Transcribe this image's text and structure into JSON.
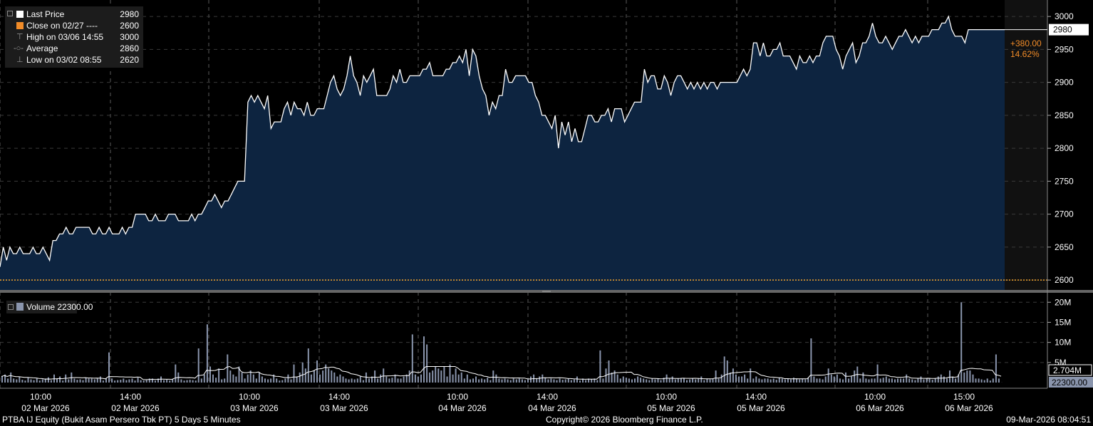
{
  "legend": {
    "last_price_label": "Last Price",
    "last_price_value": "2980",
    "close_label": "Close on 02/27 ----",
    "close_value": "2600",
    "high_label": "High on 03/06 14:55",
    "high_value": "3000",
    "average_label": "Average",
    "average_value": "2860",
    "low_label": "Low on 03/02 08:55",
    "low_value": "2620"
  },
  "volume_legend": "Volume 22300.00",
  "change": {
    "abs": "+380.00",
    "pct": "14.62%"
  },
  "last_price_tag": "2980",
  "volume_avg_tag": "2.704M",
  "volume_last_tag": "22300.00",
  "footer": {
    "left": "PTBA IJ Equity (Bukit Asam Persero Tbk PT) 5 Days 5 Minutes",
    "center": "Copyright© 2026 Bloomberg Finance L.P.",
    "right": "09-Mar-2026 08:04:51"
  },
  "colors": {
    "price_line": "#ffffff",
    "price_fill": "#0d2440",
    "close_line": "#f2a32c",
    "volume_bar": "#8a95ad",
    "accent_orange": "#f28c28",
    "grid": "#5a5a5a"
  },
  "chart_data": [
    {
      "type": "area",
      "title": "Last Price",
      "ylim": [
        2585,
        3025
      ],
      "y_ticks": [
        "3000",
        "2950",
        "2900",
        "2850",
        "2800",
        "2750",
        "2700",
        "2650",
        "2600"
      ],
      "close_reference": 2600,
      "grid": true,
      "x_ticks": [
        {
          "time": "10:00",
          "date": "02 Mar 2026"
        },
        {
          "time": "14:00",
          "date": "02 Mar 2026"
        },
        {
          "time": "10:00",
          "date": "03 Mar 2026"
        },
        {
          "time": "14:00",
          "date": "03 Mar 2026"
        },
        {
          "time": "10:00",
          "date": "04 Mar 2026"
        },
        {
          "time": "14:00",
          "date": "04 Mar 2026"
        },
        {
          "time": "10:00",
          "date": "05 Mar 2026"
        },
        {
          "time": "14:00",
          "date": "05 Mar 2026"
        },
        {
          "time": "10:00",
          "date": "06 Mar 2026"
        },
        {
          "time": "15:00",
          "date": "06 Mar 2026"
        }
      ],
      "values": [
        2620,
        2650,
        2630,
        2650,
        2640,
        2640,
        2650,
        2640,
        2640,
        2640,
        2650,
        2640,
        2640,
        2650,
        2640,
        2630,
        2660,
        2660,
        2670,
        2670,
        2680,
        2670,
        2670,
        2680,
        2680,
        2680,
        2680,
        2680,
        2670,
        2670,
        2680,
        2670,
        2670,
        2680,
        2670,
        2670,
        2670,
        2680,
        2670,
        2680,
        2680,
        2700,
        2700,
        2700,
        2700,
        2690,
        2690,
        2700,
        2690,
        2690,
        2690,
        2700,
        2700,
        2700,
        2690,
        2690,
        2690,
        2690,
        2700,
        2690,
        2700,
        2700,
        2710,
        2720,
        2720,
        2730,
        2720,
        2710,
        2720,
        2720,
        2730,
        2740,
        2750,
        2750,
        2750,
        2870,
        2880,
        2870,
        2880,
        2870,
        2860,
        2880,
        2830,
        2840,
        2840,
        2840,
        2860,
        2870,
        2850,
        2870,
        2860,
        2860,
        2850,
        2870,
        2850,
        2850,
        2860,
        2860,
        2860,
        2880,
        2900,
        2910,
        2890,
        2880,
        2890,
        2910,
        2940,
        2910,
        2900,
        2880,
        2910,
        2900,
        2910,
        2920,
        2880,
        2880,
        2880,
        2880,
        2890,
        2910,
        2900,
        2920,
        2900,
        2900,
        2910,
        2910,
        2910,
        2910,
        2920,
        2920,
        2930,
        2910,
        2910,
        2910,
        2910,
        2920,
        2920,
        2930,
        2930,
        2940,
        2930,
        2950,
        2910,
        2950,
        2940,
        2910,
        2890,
        2880,
        2850,
        2870,
        2860,
        2880,
        2880,
        2920,
        2900,
        2900,
        2910,
        2910,
        2910,
        2910,
        2900,
        2900,
        2880,
        2870,
        2850,
        2850,
        2840,
        2830,
        2850,
        2800,
        2840,
        2820,
        2840,
        2810,
        2830,
        2810,
        2810,
        2830,
        2850,
        2850,
        2840,
        2840,
        2850,
        2850,
        2860,
        2840,
        2860,
        2860,
        2860,
        2840,
        2850,
        2860,
        2870,
        2870,
        2870,
        2920,
        2900,
        2910,
        2910,
        2890,
        2890,
        2910,
        2900,
        2880,
        2900,
        2910,
        2910,
        2900,
        2890,
        2900,
        2890,
        2900,
        2890,
        2900,
        2890,
        2900,
        2900,
        2890,
        2900,
        2900,
        2900,
        2900,
        2900,
        2900,
        2910,
        2920,
        2910,
        2920,
        2960,
        2960,
        2940,
        2960,
        2940,
        2940,
        2950,
        2950,
        2960,
        2940,
        2940,
        2940,
        2930,
        2920,
        2940,
        2930,
        2930,
        2940,
        2930,
        2940,
        2940,
        2960,
        2970,
        2970,
        2970,
        2950,
        2940,
        2920,
        2940,
        2950,
        2960,
        2930,
        2940,
        2960,
        2960,
        2970,
        2990,
        2970,
        2960,
        2960,
        2970,
        2960,
        2950,
        2960,
        2970,
        2970,
        2980,
        2970,
        2960,
        2970,
        2960,
        2970,
        2970,
        2970,
        2980,
        2980,
        2980,
        2990,
        2990,
        3000,
        2980,
        2970,
        2970,
        2970,
        2960,
        2980,
        2980,
        2980,
        2980,
        2980,
        2980,
        2980,
        2980,
        2980,
        2980,
        2980,
        2980
      ]
    },
    {
      "type": "bar",
      "title": "Volume",
      "ylim": [
        0,
        22000000
      ],
      "y_ticks": [
        "20M",
        "15M",
        "10M",
        "5M"
      ],
      "moving_average_label": "2.704M",
      "values": [
        1.5,
        2.0,
        1.0,
        2.5,
        1.0,
        0.8,
        1.5,
        0.7,
        0.5,
        1.2,
        0.8,
        0.6,
        1.0,
        0.5,
        0.8,
        1.0,
        1.3,
        0.6,
        2.0,
        1.0,
        1.5,
        0.5,
        2.0,
        0.8,
        2.5,
        1.0,
        0.7,
        0.8,
        0.6,
        1.2,
        1.0,
        1.0,
        0.8,
        1.0,
        1.5,
        0.5,
        1.0,
        7.5,
        1.0,
        0.5,
        0.6,
        0.7,
        1.0,
        0.6,
        0.8,
        1.0,
        0.5,
        1.2,
        0.6,
        0.5,
        0.6,
        1.0,
        1.0,
        0.5,
        1.0,
        1.5,
        0.6,
        0.7,
        0.5,
        0.8,
        4.5,
        2.5,
        0.8,
        0.5,
        0.6,
        0.7,
        0.6,
        0.5,
        8.5,
        1.0,
        2.0,
        14.5,
        4.0,
        2.0,
        1.2,
        3.5,
        0.8,
        1.0,
        7.0,
        3.0,
        2.0,
        1.5,
        4.0,
        2.5,
        1.0,
        2.0,
        3.0,
        2.0,
        1.0,
        2.5,
        1.5,
        1.0,
        0.8,
        1.0,
        2.0,
        1.0,
        0.5,
        0.6,
        1.0,
        2.0,
        0.8,
        4.5,
        1.5,
        2.5,
        5.0,
        3.5,
        8.5,
        2.0,
        3.0,
        5.5,
        2.0,
        3.0,
        4.5,
        3.5,
        3.0,
        2.5,
        1.5,
        2.0,
        1.5,
        1.0,
        0.8,
        1.0,
        0.8,
        1.0,
        1.5,
        0.6,
        2.5,
        1.0,
        1.5,
        3.0,
        1.0,
        2.0,
        3.5,
        1.5,
        1.0,
        1.2,
        2.0,
        1.0,
        1.0,
        1.5,
        2.0,
        3.0,
        12.0,
        2.0,
        1.5,
        2.0,
        11.5,
        9.5,
        2.5,
        3.0,
        4.0,
        3.5,
        3.0,
        4.0,
        1.5,
        4.5,
        2.0,
        3.5,
        2.0,
        2.5,
        1.0,
        2.0,
        0.8,
        1.0,
        1.5,
        0.8,
        1.0,
        0.8,
        1.2,
        0.6,
        3.0,
        2.0,
        1.0,
        0.8,
        1.0,
        0.8,
        0.6,
        1.0,
        0.8,
        1.0,
        0.8,
        0.6,
        0.8,
        1.5,
        2.0,
        1.0,
        1.5,
        2.0,
        1.2,
        0.8,
        1.0,
        0.8,
        0.6,
        1.0,
        0.7,
        0.8,
        1.0,
        0.6,
        0.8,
        1.5,
        0.5,
        1.0,
        0.6,
        1.0,
        0.8,
        1.0,
        0.6,
        8.0,
        1.0,
        3.5,
        5.5,
        2.5,
        3.0,
        2.0,
        1.0,
        1.5,
        1.2,
        1.0,
        0.8,
        1.0,
        1.5,
        1.2,
        1.0,
        0.8,
        0.6,
        1.0,
        0.8,
        1.0,
        0.6,
        1.2,
        2.0,
        1.0,
        1.5,
        0.8,
        1.0,
        1.0,
        1.0,
        0.6,
        0.8,
        1.0,
        0.8,
        1.0,
        1.5,
        0.6,
        1.0,
        0.8,
        1.0,
        3.0,
        1.0,
        2.0,
        6.5,
        5.5,
        2.5,
        3.5,
        2.0,
        1.5,
        1.5,
        2.0,
        1.0,
        3.5,
        1.0,
        1.5,
        1.0,
        0.8,
        1.0,
        1.0,
        0.8,
        1.0,
        0.7,
        1.2,
        1.0,
        0.8,
        1.0,
        0.8,
        1.2,
        1.0,
        0.8,
        1.0,
        0.8,
        1.2,
        11.0,
        1.5,
        1.0,
        1.0,
        0.8,
        1.5,
        3.5,
        2.0,
        1.5,
        2.0,
        1.0,
        0.8,
        2.5,
        1.0,
        1.5,
        3.0,
        4.0,
        1.0,
        2.5,
        1.0,
        0.8,
        1.0,
        1.0,
        4.5,
        1.0,
        1.2,
        1.5,
        1.0,
        1.0,
        0.8,
        1.0,
        1.0,
        1.0,
        2.0,
        1.0,
        0.8,
        0.6,
        1.0,
        1.5,
        0.8,
        1.0,
        1.0,
        0.7,
        1.0,
        1.5,
        2.0,
        1.5,
        1.0,
        3.0,
        1.5,
        1.0,
        2.0,
        20.0,
        2.5,
        3.0,
        3.0,
        2.0,
        1.0,
        1.0,
        0.8,
        0.6,
        1.0,
        0.5,
        1.0,
        7.0,
        1.0,
        0.02
      ]
    }
  ]
}
